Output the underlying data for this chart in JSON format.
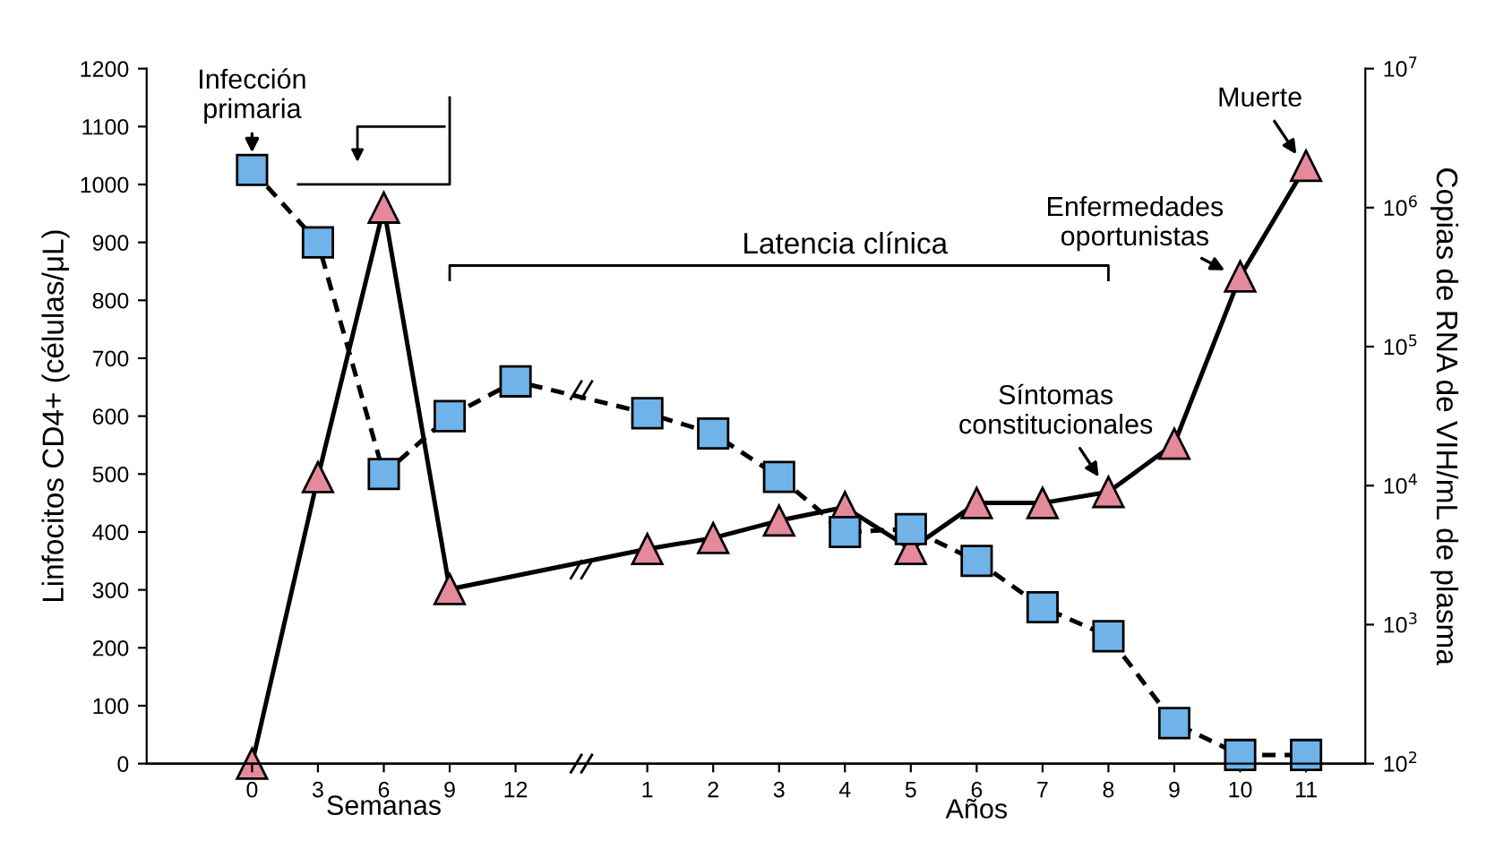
{
  "chart_data": {
    "type": "line",
    "xlabel": "Semanas",
    "ylabel": "Linfocitos CD4+ (células/μL)",
    "y2label": "Copias de RNA de VIH/mL de plasma",
    "categories": [
      "0",
      "3",
      "6",
      "9",
      "12",
      null,
      "1",
      "2",
      "3",
      "4",
      "5",
      "6",
      "7",
      "8",
      "9",
      "10",
      "11"
    ],
    "ylim": [
      0,
      1200
    ],
    "yticks": [
      0,
      100,
      200,
      300,
      400,
      500,
      600,
      700,
      800,
      900,
      1000,
      1100,
      1200
    ],
    "log": "y2",
    "y2lim": [
      100,
      10000000
    ],
    "y2ticks": [
      {
        "value": 100,
        "label": "10$^{2}$"
      },
      {
        "value": 1000,
        "label": "10$^{3}$"
      },
      {
        "value": 10000,
        "label": "10$^{4}$"
      },
      {
        "value": 100000,
        "label": "10$^{5}$"
      },
      {
        "value": 1000000,
        "label": "10$^{6}$"
      },
      {
        "value": 10000000,
        "label": "10$^{7}$"
      }
    ],
    "grid": false,
    "series": [
      {
        "color": "#6fb3e8",
        "marker": "square",
        "line_style": "dashed",
        "values": [
          1025,
          900,
          500,
          600,
          660,
          null,
          605,
          570,
          495,
          400,
          405,
          350,
          270,
          220,
          70,
          15,
          15
        ]
      },
      {
        "color": "#e58a9a",
        "marker": "triangle",
        "line_style": "solid",
        "axis": "y2",
        "values": [
          100,
          11500,
          1000000,
          1800,
          null,
          null,
          3500,
          4200,
          5600,
          7000,
          3500,
          7500,
          7500,
          9000,
          20000,
          320000,
          2000000
        ]
      }
    ],
    "annotations": [
      "Años",
      {
        "text": "Infección\nprimaria",
        "x": "0",
        "y": 1025
      },
      "Latencia clínica",
      {
        "text": "Síntomas\nconstitucionales",
        "x": "8",
        "y": 470
      },
      {
        "text": "Enfermedades\noportunistas",
        "x": "10",
        "y": 838
      },
      {
        "text": "Muerte",
        "x": "11",
        "y": 1027
      }
    ]
  }
}
